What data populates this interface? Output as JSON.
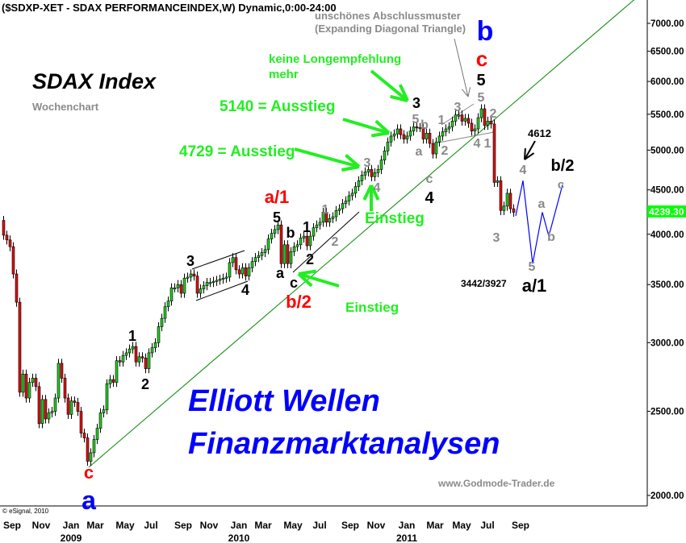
{
  "title": "($SDXP-XET - SDAX PERFORMANCEINDEX,W) Dynamic,0:00-24:00",
  "chart_title": "SDAX Index",
  "subtitle": "Wochenchart",
  "note_top": [
    "unschönes Abschlussmuster",
    "(Expanding Diagonal Triangle)"
  ],
  "watermark": [
    "Elliott Wellen",
    "Finanzmarktanalysen"
  ],
  "website": "www.Godmode-Trader.de",
  "copyright": "© eSignal, 2010",
  "colors": {
    "up": "#22cc22",
    "down": "#dd1111",
    "support_line": "#008800",
    "annotation_green": "#22ee22",
    "wave_gray": "#8a8a8a",
    "wave_red": "#ff0000",
    "wave_blue": "#0000ff",
    "projection": "#0000ff",
    "last_price_bg": "#00ff00"
  },
  "chart_data": {
    "type": "candlestick",
    "interval": "weekly",
    "y_scale": "log",
    "ylim": [
      1850,
      7400
    ],
    "y_ticks": [
      2000,
      2500,
      3000,
      3500,
      4000,
      4500,
      5000,
      5500,
      6000,
      6500,
      7000
    ],
    "y_tick_labels": [
      "2000.00",
      "2500.00",
      "3000.00",
      "3500.00",
      "4000.00",
      "4500.00",
      "5000.00",
      "5500.00",
      "6000.00",
      "6500.00",
      "7000.00"
    ],
    "last_price": "4239.30",
    "first_open": 4150,
    "closes": [
      3990,
      3940,
      3870,
      3600,
      3340,
      2630,
      2760,
      2590,
      2700,
      2730,
      2670,
      2420,
      2580,
      2450,
      2490,
      2500,
      2590,
      2840,
      2730,
      2590,
      2480,
      2570,
      2560,
      2500,
      2360,
      2330,
      2190,
      2240,
      2320,
      2390,
      2490,
      2510,
      2690,
      2720,
      2700,
      2860,
      2850,
      2900,
      2920,
      2950,
      2970,
      2850,
      2890,
      2880,
      2800,
      2920,
      2960,
      3000,
      3130,
      3200,
      3300,
      3350,
      3470,
      3470,
      3500,
      3420,
      3560,
      3570,
      3600,
      3580,
      3420,
      3460,
      3490,
      3520,
      3520,
      3530,
      3540,
      3550,
      3560,
      3570,
      3710,
      3760,
      3640,
      3600,
      3660,
      3580,
      3660,
      3720,
      3760,
      3780,
      3810,
      3840,
      3950,
      4010,
      4050,
      4100,
      3700,
      3890,
      3700,
      3820,
      3870,
      3890,
      3960,
      3980,
      3880,
      3980,
      4070,
      4100,
      4130,
      4240,
      4130,
      4170,
      4190,
      4260,
      4280,
      4340,
      4370,
      4430,
      4460,
      4540,
      4610,
      4680,
      4720,
      4750,
      4660,
      4710,
      4750,
      4870,
      4990,
      5110,
      5190,
      5220,
      5290,
      5210,
      5150,
      5190,
      5260,
      5320,
      5310,
      5310,
      5150,
      5230,
      5090,
      4950,
      5110,
      5190,
      5250,
      5290,
      5320,
      5400,
      5490,
      5490,
      5400,
      5440,
      5370,
      5260,
      5290,
      5450,
      5580,
      5340,
      5400,
      5360,
      4590,
      4610,
      4260,
      4310,
      4460,
      4280,
      4240
    ],
    "x_tick_labels": [
      "Sep",
      "Nov",
      "Jan",
      "Mar",
      "May",
      "Jul",
      "Sep",
      "Nov",
      "Jan",
      "Mar",
      "May",
      "Jul",
      "Sep",
      "Nov",
      "Jan",
      "Mar",
      "May",
      "Jul",
      "Sep"
    ],
    "x_year_labels": [
      "2009",
      "2010",
      "2011"
    ],
    "projection_path": [
      4200,
      4612,
      3700,
      4240,
      3980,
      4560
    ]
  },
  "annotations": {
    "keine_long": [
      "keine Longempfehlung",
      "mehr"
    ],
    "ausstieg_5140": "5140 = Ausstieg",
    "ausstieg_4729": "4729 = Ausstieg",
    "einstieg_upper": "Einstieg",
    "einstieg_lower": "Einstieg",
    "target_4612": "4612",
    "target_range": "3442/3927"
  },
  "wave_labels": [
    {
      "text": "c",
      "color": "red"
    },
    {
      "text": "a",
      "color": "blue"
    },
    {
      "text": "1",
      "color": "black"
    },
    {
      "text": "2",
      "color": "black"
    },
    {
      "text": "3",
      "color": "black"
    },
    {
      "text": "4",
      "color": "black"
    },
    {
      "text": "a/1",
      "color": "red"
    },
    {
      "text": "5",
      "color": "black"
    },
    {
      "text": "b",
      "color": "black"
    },
    {
      "text": "1",
      "color": "black"
    },
    {
      "text": "a",
      "color": "black"
    },
    {
      "text": "c",
      "color": "black"
    },
    {
      "text": "2",
      "color": "black"
    },
    {
      "text": "b/2",
      "color": "red"
    },
    {
      "text": "1",
      "color": "gray"
    },
    {
      "text": "2",
      "color": "gray"
    },
    {
      "text": "3",
      "color": "gray"
    },
    {
      "text": "4",
      "color": "gray"
    },
    {
      "text": "3",
      "color": "black"
    },
    {
      "text": "5",
      "color": "gray"
    },
    {
      "text": "b",
      "color": "gray"
    },
    {
      "text": "a",
      "color": "gray"
    },
    {
      "text": "c",
      "color": "gray"
    },
    {
      "text": "4",
      "color": "black"
    },
    {
      "text": "1",
      "color": "gray"
    },
    {
      "text": "2",
      "color": "gray"
    },
    {
      "text": "3",
      "color": "gray"
    },
    {
      "text": "5",
      "color": "gray"
    },
    {
      "text": "5",
      "color": "black"
    },
    {
      "text": "c",
      "color": "red"
    },
    {
      "text": "b",
      "color": "blue"
    },
    {
      "text": "2",
      "color": "gray"
    },
    {
      "text": "4",
      "color": "gray"
    },
    {
      "text": "1",
      "color": "gray"
    },
    {
      "text": "3",
      "color": "gray"
    },
    {
      "text": "4",
      "color": "gray"
    },
    {
      "text": "b/2",
      "color": "black"
    },
    {
      "text": "a",
      "color": "gray"
    },
    {
      "text": "c",
      "color": "gray"
    },
    {
      "text": "b",
      "color": "gray"
    },
    {
      "text": "5",
      "color": "gray"
    },
    {
      "text": "a/1",
      "color": "black"
    }
  ]
}
